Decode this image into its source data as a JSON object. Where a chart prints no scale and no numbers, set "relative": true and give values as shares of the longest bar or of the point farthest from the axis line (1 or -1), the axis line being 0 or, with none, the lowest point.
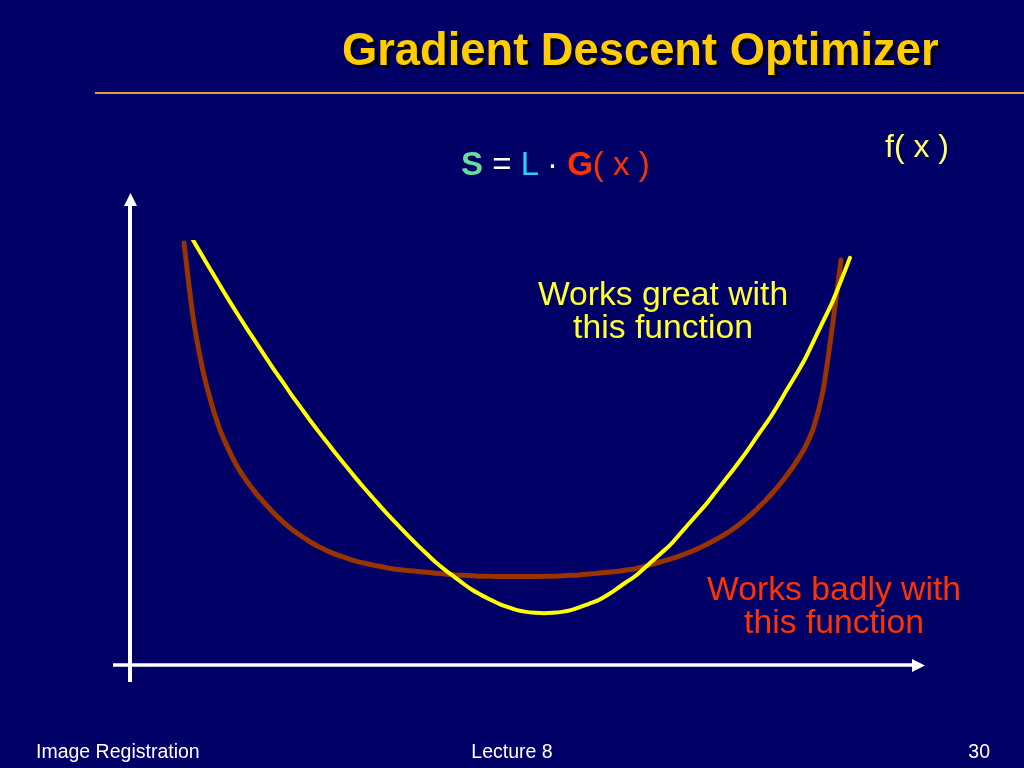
{
  "chart_data": {
    "type": "line",
    "title": "Gradient Descent Optimizer",
    "relative": true,
    "grid": false,
    "legend": false,
    "marker": "none",
    "categories": [
      null,
      null,
      null,
      null,
      null,
      null,
      null,
      null,
      null,
      null,
      null,
      null,
      null,
      null,
      null,
      null,
      null,
      null,
      null,
      null,
      null,
      null,
      null,
      null,
      null,
      null,
      null,
      null,
      null,
      null,
      null,
      null,
      null,
      null,
      null,
      null,
      null,
      null,
      null,
      null,
      null,
      null,
      null,
      null,
      null,
      null,
      null,
      null,
      null,
      null,
      null,
      null,
      null,
      null,
      null,
      null,
      null,
      null,
      null,
      null,
      null,
      null,
      null,
      null,
      null,
      null,
      null,
      null,
      null,
      null,
      null,
      null,
      null,
      null,
      null,
      null,
      null,
      null,
      null,
      null,
      null,
      null,
      null,
      null,
      null,
      null,
      null,
      null,
      null
    ],
    "series": [
      {
        "name": "Works great with this function",
        "color": "#ffff00",
        "values": [
          null,
          null,
          null,
          null,
          null,
          null,
          null,
          1,
          0.964,
          0.928,
          0.893,
          0.858,
          0.824,
          0.791,
          0.759,
          0.727,
          0.695,
          0.665,
          0.634,
          0.605,
          0.576,
          0.548,
          0.521,
          0.494,
          0.468,
          0.442,
          0.417,
          0.393,
          0.369,
          0.346,
          0.324,
          0.302,
          0.281,
          0.261,
          0.241,
          0.224,
          0.208,
          0.192,
          0.177,
          0.165,
          0.154,
          0.144,
          0.136,
          0.129,
          0.125,
          0.123,
          0.122,
          0.123,
          0.125,
          0.129,
          0.136,
          0.144,
          0.152,
          0.164,
          0.178,
          0.193,
          0.207,
          0.225,
          0.244,
          0.263,
          0.282,
          0.306,
          0.33,
          0.354,
          0.378,
          0.405,
          0.432,
          0.459,
          0.487,
          0.517,
          0.548,
          0.578,
          0.612,
          0.648,
          0.683,
          0.72,
          0.764,
          0.808,
          0.852,
          0.904,
          0.958,
          null,
          null,
          null,
          null,
          null,
          null,
          null,
          null
        ]
      },
      {
        "name": "Works badly with this function",
        "color": "#993300",
        "values": [
          null,
          null,
          null,
          null,
          null,
          null,
          0.993,
          0.82,
          0.703,
          0.619,
          0.553,
          0.505,
          0.464,
          0.432,
          0.404,
          0.38,
          0.357,
          0.337,
          0.319,
          0.304,
          0.29,
          0.278,
          0.268,
          0.259,
          0.252,
          0.245,
          0.24,
          0.235,
          0.231,
          0.227,
          0.224,
          0.222,
          0.22,
          0.218,
          0.216,
          0.214,
          0.212,
          0.211,
          0.21,
          0.209,
          0.209,
          0.208,
          0.208,
          0.208,
          0.208,
          0.208,
          0.209,
          0.209,
          0.21,
          0.211,
          0.212,
          0.214,
          0.216,
          0.218,
          0.22,
          0.223,
          0.226,
          0.231,
          0.237,
          0.243,
          0.249,
          0.256,
          0.264,
          0.273,
          0.283,
          0.294,
          0.306,
          0.32,
          0.336,
          0.354,
          0.374,
          0.396,
          0.42,
          0.447,
          0.477,
          0.512,
          0.562,
          0.645,
          0.79,
          0.953,
          null,
          null,
          null,
          null,
          null,
          null,
          null,
          null,
          null
        ]
      }
    ],
    "annotations": [
      "S = L · G( x )",
      "f( x )",
      "Image Registration",
      "Lecture 8",
      "30"
    ]
  }
}
